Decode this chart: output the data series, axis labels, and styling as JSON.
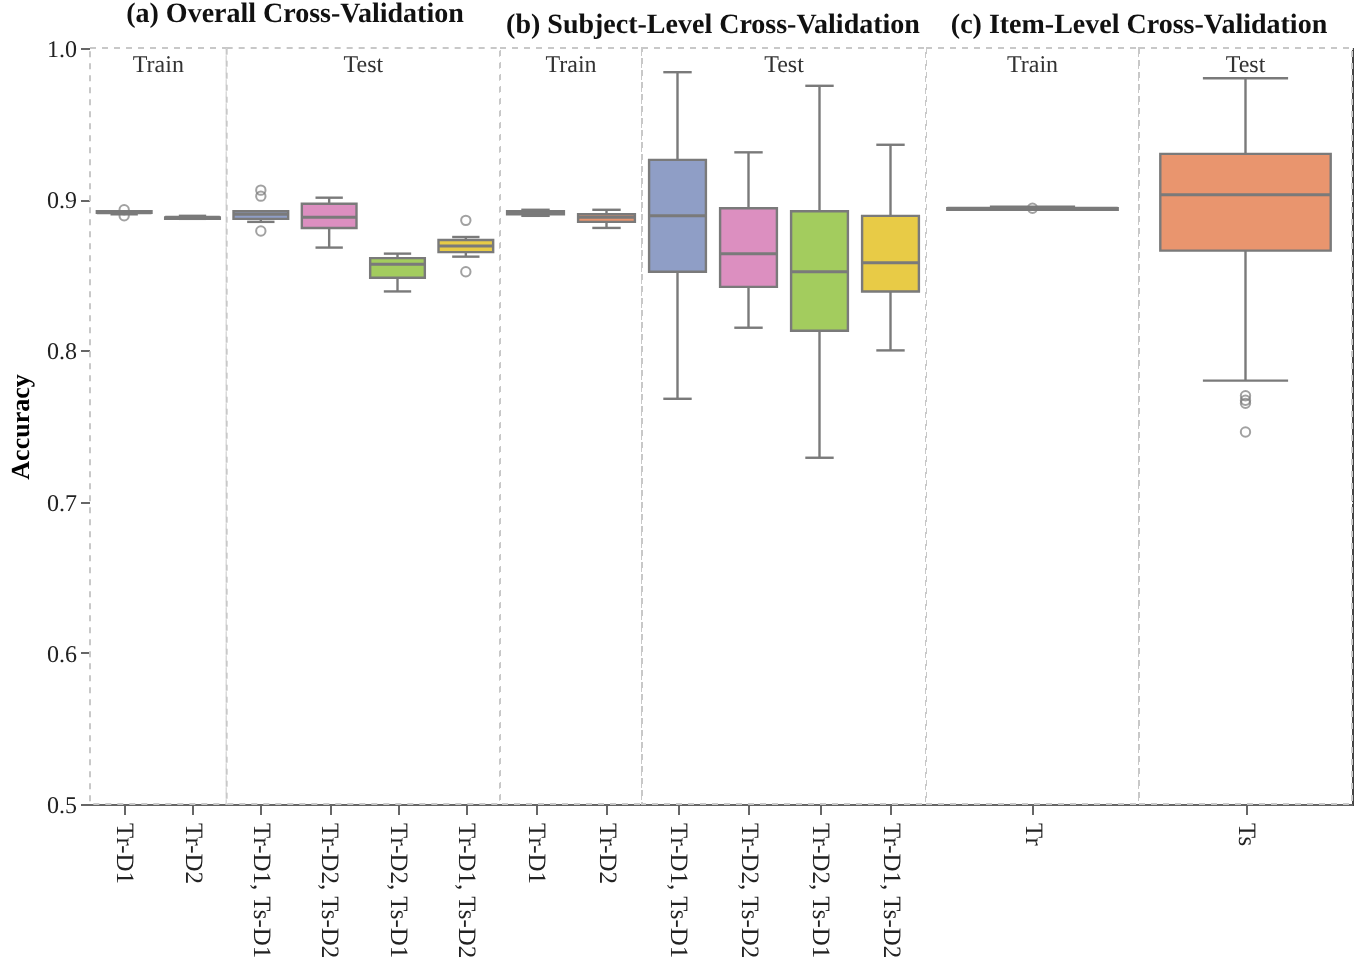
{
  "chart_data": [
    {
      "type": "box",
      "title": "(a) Overall Cross-Validation",
      "ylabel": "Accuracy",
      "categories": [
        "Tr-D1",
        "Tr-D2",
        "Tr-D1, Ts-D1",
        "Tr-D2, Ts-D2",
        "Tr-D2, Ts-D1",
        "Tr-D1, Ts-D2"
      ],
      "boxes": [
        {
          "low": 0.89,
          "q1": 0.891,
          "median": 0.891,
          "q3": 0.892,
          "high": 0.892,
          "outliers": [
            0.889,
            0.893
          ]
        },
        {
          "low": 0.887,
          "q1": 0.887,
          "median": 0.888,
          "q3": 0.888,
          "high": 0.889
        },
        {
          "low": 0.885,
          "q1": 0.887,
          "median": 0.89,
          "q3": 0.892,
          "high": 0.892,
          "outliers": [
            0.906,
            0.902,
            0.879
          ]
        },
        {
          "low": 0.868,
          "q1": 0.881,
          "median": 0.888,
          "q3": 0.897,
          "high": 0.901
        },
        {
          "low": 0.839,
          "q1": 0.848,
          "median": 0.857,
          "q3": 0.861,
          "high": 0.864
        },
        {
          "low": 0.862,
          "q1": 0.865,
          "median": 0.869,
          "q3": 0.873,
          "high": 0.875,
          "outliers": [
            0.886,
            0.852
          ]
        }
      ],
      "colors": [
        "#6fb9a0",
        "#e9956e",
        "#8f9ec6",
        "#dc8fc0",
        "#a3cc5e",
        "#e8cb46"
      ],
      "bands": [
        {
          "axis": "x",
          "from": "Tr-D1",
          "to": "Tr-D2",
          "label": "Train"
        },
        {
          "axis": "x",
          "from": "Tr-D1, Ts-D1",
          "to": "Tr-D1, Ts-D2",
          "label": "Test"
        }
      ],
      "ylim": [
        0.5,
        1
      ],
      "yticks": [
        0.5,
        0.6,
        0.7,
        0.8,
        0.9,
        {
          "value": 1,
          "label": "1.0"
        }
      ],
      "grid": "y"
    },
    {
      "type": "box",
      "title": "(b) Subject-Level Cross-Validation",
      "categories": [
        "Tr-D1",
        "Tr-D2",
        "Tr-D1, Ts-D1",
        "Tr-D2, Ts-D2",
        "Tr-D2, Ts-D1",
        "Tr-D1, Ts-D2"
      ],
      "boxes": [
        {
          "low": 0.889,
          "q1": 0.89,
          "median": 0.891,
          "q3": 0.892,
          "high": 0.893
        },
        {
          "low": 0.881,
          "q1": 0.885,
          "median": 0.888,
          "q3": 0.89,
          "high": 0.893
        },
        {
          "low": 0.768,
          "q1": 0.852,
          "median": 0.889,
          "q3": 0.926,
          "high": 0.984
        },
        {
          "low": 0.815,
          "q1": 0.842,
          "median": 0.864,
          "q3": 0.894,
          "high": 0.931
        },
        {
          "low": 0.729,
          "q1": 0.813,
          "median": 0.852,
          "q3": 0.892,
          "high": 0.975
        },
        {
          "low": 0.8,
          "q1": 0.839,
          "median": 0.858,
          "q3": 0.889,
          "high": 0.936
        }
      ],
      "colors": [
        "#6fb9a0",
        "#e9956e",
        "#8f9ec6",
        "#dc8fc0",
        "#a3cc5e",
        "#e8cb46"
      ],
      "bands": [
        {
          "axis": "x",
          "from": "Tr-D1",
          "to": "Tr-D2",
          "label": "Train"
        },
        {
          "axis": "x",
          "from": "Tr-D1, Ts-D1",
          "to": "Tr-D1, Ts-D2",
          "label": "Test"
        }
      ],
      "ylim": [
        0.5,
        1
      ],
      "yticks": [
        0.5,
        0.6,
        0.7,
        0.8,
        0.9,
        1
      ],
      "grid": "y",
      "tick_labels": "x"
    },
    {
      "type": "box",
      "title": "(c) Item-Level Cross-Validation",
      "categories": [
        "Tr",
        "Ts"
      ],
      "boxes": [
        {
          "low": 0.893,
          "q1": 0.893,
          "median": 0.894,
          "q3": 0.894,
          "high": 0.895,
          "outliers": [
            0.894
          ]
        },
        {
          "low": 0.78,
          "q1": 0.866,
          "median": 0.903,
          "q3": 0.93,
          "high": 0.98,
          "outliers": [
            0.77,
            0.767,
            0.765,
            0.746
          ]
        }
      ],
      "colors": [
        "#6fb9a0",
        "#e9956e"
      ],
      "bands": [
        {
          "axis": "x",
          "from": "Tr",
          "to": "Tr",
          "label": "Train"
        },
        {
          "axis": "x",
          "from": "Ts",
          "to": "Ts",
          "label": "Test"
        }
      ],
      "ylim": [
        0.5,
        1
      ],
      "yticks": [
        0.5,
        0.6,
        0.7,
        0.8,
        0.9,
        1
      ],
      "grid": "y",
      "tick_labels": "x"
    }
  ]
}
